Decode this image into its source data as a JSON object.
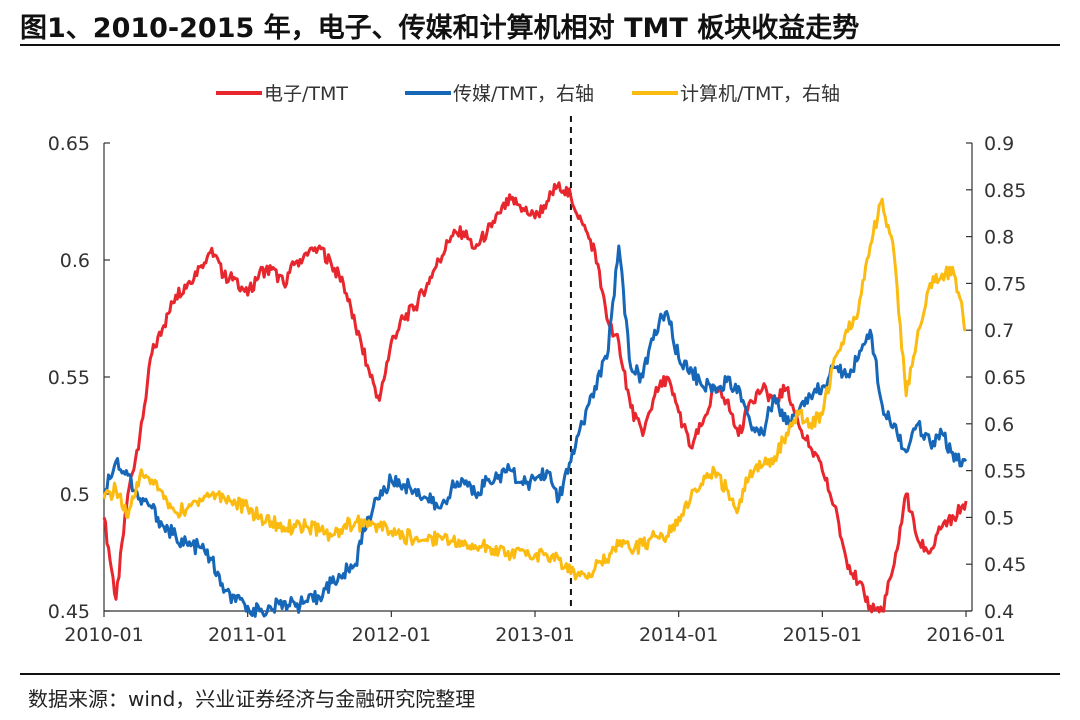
{
  "header": {
    "title": "图1、2010-2015 年，电子、传媒和计算机相对 TMT 板块收益走势"
  },
  "footer": {
    "source": "数据来源：wind，兴业证券经济与金融研究院整理"
  },
  "chart_data": {
    "type": "line",
    "title": "图1、2010-2015 年，电子、传媒和计算机相对 TMT 板块收益走势",
    "x_ticks": [
      "2010-01",
      "2011-01",
      "2012-01",
      "2013-01",
      "2014-01",
      "2015-01",
      "2016-01"
    ],
    "x_range": [
      "2010-01",
      "2016-01"
    ],
    "y_left": {
      "range": [
        0.45,
        0.65
      ],
      "ticks": [
        "0.45",
        "0.5",
        "0.55",
        "0.6",
        "0.65"
      ]
    },
    "y_right": {
      "range": [
        0.4,
        0.9
      ],
      "ticks": [
        "0.4",
        "0.45",
        "0.5",
        "0.55",
        "0.6",
        "0.65",
        "0.7",
        "0.75",
        "0.8",
        "0.85",
        "0.9"
      ]
    },
    "grid": false,
    "legend_position": "top",
    "vline_x": "2013-04",
    "series": [
      {
        "name": "电子/TMT",
        "axis": "left",
        "color": "#e8262d",
        "x": [
          "2010-01",
          "2010-02",
          "2010-03",
          "2010-04",
          "2010-05",
          "2010-06",
          "2010-07",
          "2010-08",
          "2010-09",
          "2010-10",
          "2010-11",
          "2010-12",
          "2011-01",
          "2011-02",
          "2011-03",
          "2011-04",
          "2011-05",
          "2011-06",
          "2011-07",
          "2011-08",
          "2011-09",
          "2011-10",
          "2011-11",
          "2011-12",
          "2012-01",
          "2012-02",
          "2012-03",
          "2012-04",
          "2012-05",
          "2012-06",
          "2012-07",
          "2012-08",
          "2012-09",
          "2012-10",
          "2012-11",
          "2012-12",
          "2013-01",
          "2013-02",
          "2013-03",
          "2013-04",
          "2013-05",
          "2013-06",
          "2013-07",
          "2013-08",
          "2013-09",
          "2013-10",
          "2013-11",
          "2013-12",
          "2014-01",
          "2014-02",
          "2014-03",
          "2014-04",
          "2014-05",
          "2014-06",
          "2014-07",
          "2014-08",
          "2014-09",
          "2014-10",
          "2014-11",
          "2014-12",
          "2015-01",
          "2015-02",
          "2015-03",
          "2015-04",
          "2015-05",
          "2015-06",
          "2015-07",
          "2015-08",
          "2015-09",
          "2015-10",
          "2015-11",
          "2015-12",
          "2016-01"
        ],
        "values": [
          0.49,
          0.455,
          0.5,
          0.525,
          0.56,
          0.572,
          0.585,
          0.59,
          0.597,
          0.605,
          0.593,
          0.592,
          0.585,
          0.595,
          0.596,
          0.59,
          0.599,
          0.602,
          0.606,
          0.598,
          0.59,
          0.572,
          0.555,
          0.54,
          0.565,
          0.575,
          0.58,
          0.59,
          0.6,
          0.61,
          0.612,
          0.605,
          0.612,
          0.62,
          0.626,
          0.622,
          0.618,
          0.625,
          0.633,
          0.627,
          0.615,
          0.604,
          0.575,
          0.565,
          0.537,
          0.525,
          0.542,
          0.55,
          0.535,
          0.52,
          0.53,
          0.545,
          0.54,
          0.525,
          0.54,
          0.545,
          0.54,
          0.545,
          0.53,
          0.52,
          0.51,
          0.495,
          0.472,
          0.462,
          0.452,
          0.45,
          0.47,
          0.5,
          0.48,
          0.475,
          0.486,
          0.49,
          0.497
        ]
      },
      {
        "name": "传媒/TMT，右轴",
        "axis": "right",
        "color": "#1767b8",
        "x": [
          "2010-01",
          "2010-02",
          "2010-03",
          "2010-04",
          "2010-05",
          "2010-06",
          "2010-07",
          "2010-08",
          "2010-09",
          "2010-10",
          "2010-11",
          "2010-12",
          "2011-01",
          "2011-02",
          "2011-03",
          "2011-04",
          "2011-05",
          "2011-06",
          "2011-07",
          "2011-08",
          "2011-09",
          "2011-10",
          "2011-11",
          "2011-12",
          "2012-01",
          "2012-02",
          "2012-03",
          "2012-04",
          "2012-05",
          "2012-06",
          "2012-07",
          "2012-08",
          "2012-09",
          "2012-10",
          "2012-11",
          "2012-12",
          "2013-01",
          "2013-02",
          "2013-03",
          "2013-04",
          "2013-05",
          "2013-06",
          "2013-07",
          "2013-08",
          "2013-09",
          "2013-10",
          "2013-11",
          "2013-12",
          "2014-01",
          "2014-02",
          "2014-03",
          "2014-04",
          "2014-05",
          "2014-06",
          "2014-07",
          "2014-08",
          "2014-09",
          "2014-10",
          "2014-11",
          "2014-12",
          "2015-01",
          "2015-02",
          "2015-03",
          "2015-04",
          "2015-05",
          "2015-06",
          "2015-07",
          "2015-08",
          "2015-09",
          "2015-10",
          "2015-11",
          "2015-12",
          "2016-01"
        ],
        "values": [
          0.53,
          0.56,
          0.545,
          0.52,
          0.51,
          0.49,
          0.48,
          0.47,
          0.468,
          0.455,
          0.42,
          0.41,
          0.405,
          0.4,
          0.402,
          0.41,
          0.405,
          0.41,
          0.415,
          0.43,
          0.44,
          0.45,
          0.5,
          0.52,
          0.54,
          0.535,
          0.53,
          0.52,
          0.51,
          0.53,
          0.54,
          0.525,
          0.54,
          0.545,
          0.55,
          0.535,
          0.54,
          0.55,
          0.52,
          0.56,
          0.6,
          0.64,
          0.67,
          0.79,
          0.66,
          0.65,
          0.7,
          0.72,
          0.67,
          0.66,
          0.64,
          0.64,
          0.645,
          0.64,
          0.6,
          0.59,
          0.63,
          0.6,
          0.61,
          0.63,
          0.64,
          0.66,
          0.65,
          0.67,
          0.7,
          0.62,
          0.6,
          0.57,
          0.6,
          0.58,
          0.59,
          0.56,
          0.56
        ]
      },
      {
        "name": "计算机/TMT，右轴",
        "axis": "right",
        "color": "#fbbb10",
        "x": [
          "2010-01",
          "2010-02",
          "2010-03",
          "2010-04",
          "2010-05",
          "2010-06",
          "2010-07",
          "2010-08",
          "2010-09",
          "2010-10",
          "2010-11",
          "2010-12",
          "2011-01",
          "2011-02",
          "2011-03",
          "2011-04",
          "2011-05",
          "2011-06",
          "2011-07",
          "2011-08",
          "2011-09",
          "2011-10",
          "2011-11",
          "2011-12",
          "2012-01",
          "2012-02",
          "2012-03",
          "2012-04",
          "2012-05",
          "2012-06",
          "2012-07",
          "2012-08",
          "2012-09",
          "2012-10",
          "2012-11",
          "2012-12",
          "2013-01",
          "2013-02",
          "2013-03",
          "2013-04",
          "2013-05",
          "2013-06",
          "2013-07",
          "2013-08",
          "2013-09",
          "2013-10",
          "2013-11",
          "2013-12",
          "2014-01",
          "2014-02",
          "2014-03",
          "2014-04",
          "2014-05",
          "2014-06",
          "2014-07",
          "2014-08",
          "2014-09",
          "2014-10",
          "2014-11",
          "2014-12",
          "2015-01",
          "2015-02",
          "2015-03",
          "2015-04",
          "2015-05",
          "2015-06",
          "2015-07",
          "2015-08",
          "2015-09",
          "2015-10",
          "2015-11",
          "2015-12",
          "2016-01"
        ],
        "values": [
          0.52,
          0.53,
          0.5,
          0.545,
          0.54,
          0.52,
          0.505,
          0.51,
          0.52,
          0.525,
          0.522,
          0.515,
          0.51,
          0.5,
          0.495,
          0.49,
          0.49,
          0.49,
          0.485,
          0.48,
          0.49,
          0.495,
          0.49,
          0.49,
          0.485,
          0.48,
          0.478,
          0.475,
          0.48,
          0.475,
          0.47,
          0.47,
          0.47,
          0.465,
          0.46,
          0.465,
          0.46,
          0.46,
          0.455,
          0.44,
          0.44,
          0.445,
          0.455,
          0.47,
          0.465,
          0.47,
          0.48,
          0.48,
          0.5,
          0.52,
          0.535,
          0.55,
          0.53,
          0.51,
          0.55,
          0.555,
          0.565,
          0.59,
          0.61,
          0.6,
          0.61,
          0.67,
          0.7,
          0.72,
          0.79,
          0.84,
          0.78,
          0.63,
          0.7,
          0.75,
          0.76,
          0.76,
          0.7
        ]
      }
    ]
  }
}
